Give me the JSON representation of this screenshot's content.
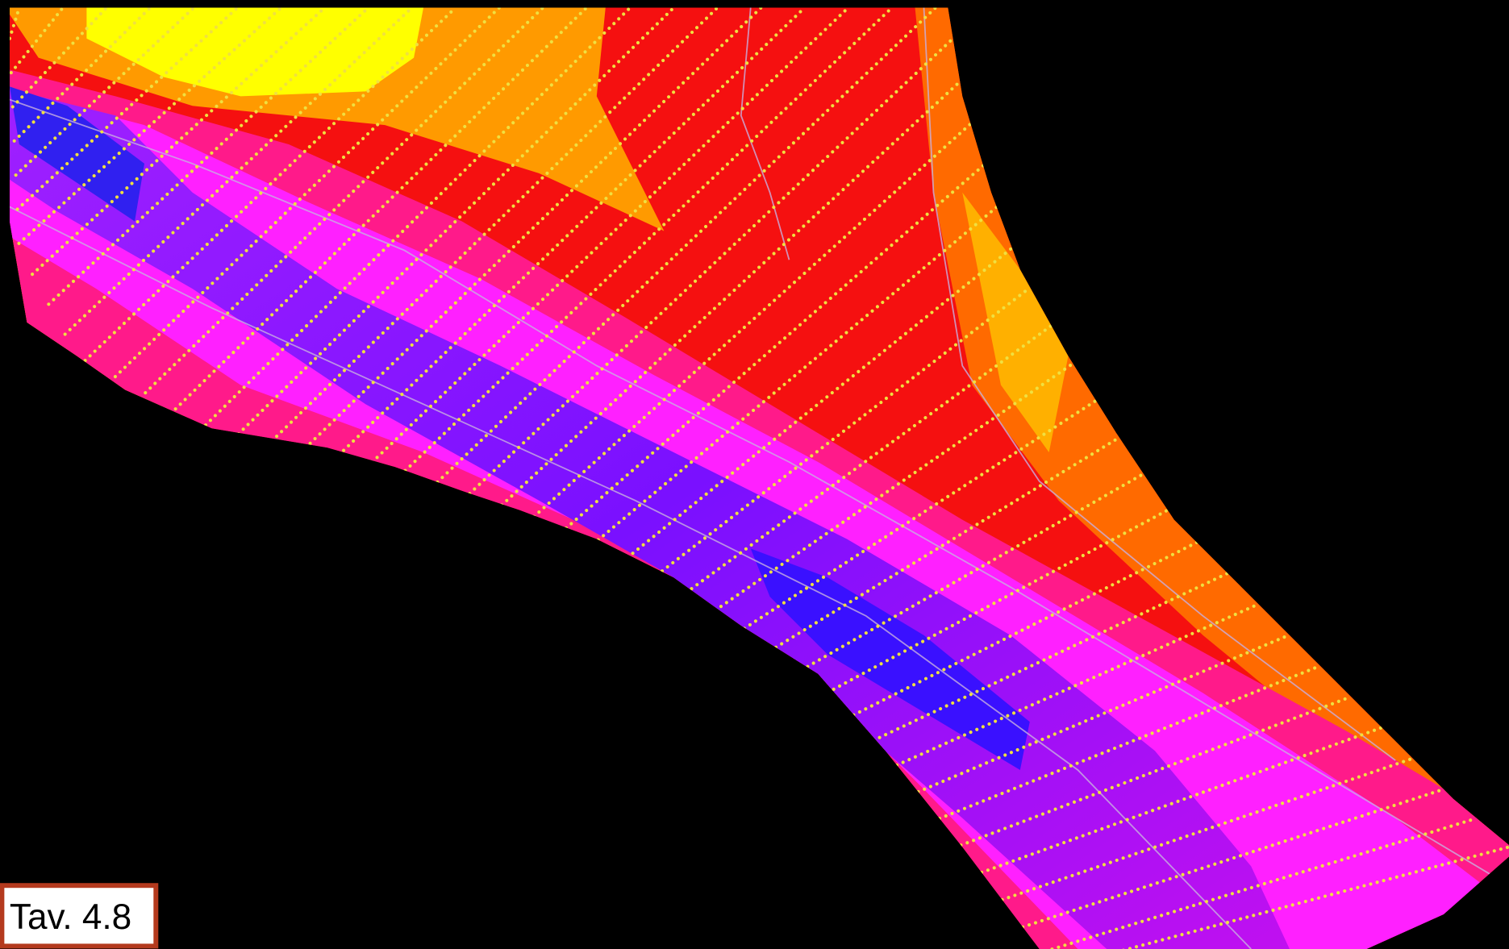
{
  "label": "Tav. 4.8"
}
